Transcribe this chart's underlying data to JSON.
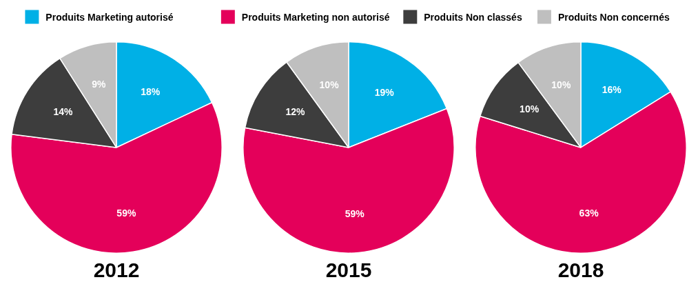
{
  "chart_data": [
    {
      "type": "pie",
      "title": "2012",
      "legend": "top",
      "categories": [
        "Produits Marketing autorisé",
        "Produits Marketing non autorisé",
        "Produits Non classés",
        "Produits Non concernés"
      ],
      "values": [
        18,
        59,
        14,
        9
      ],
      "value_labels": [
        "18%",
        "59%",
        "14%",
        "9%"
      ],
      "colors": [
        "#00b0e6",
        "#e4005a",
        "#3d3d3d",
        "#bfbfbf"
      ]
    },
    {
      "type": "pie",
      "title": "2015",
      "categories": [
        null,
        null,
        null,
        null
      ],
      "values": [
        19,
        59,
        12,
        10
      ],
      "value_labels": [
        "19%",
        "59%",
        "12%",
        "10%"
      ],
      "colors": [
        "#00b0e6",
        "#e4005a",
        "#3d3d3d",
        "#bfbfbf"
      ]
    },
    {
      "type": "pie",
      "title": "2018",
      "categories": [
        null,
        null,
        null,
        null
      ],
      "values": [
        16,
        63,
        10,
        10
      ],
      "value_labels": [
        "16%",
        "63%",
        "10%",
        "10%"
      ],
      "colors": [
        "#00b0e6",
        "#e4005a",
        "#3d3d3d",
        "#bfbfbf"
      ]
    }
  ]
}
